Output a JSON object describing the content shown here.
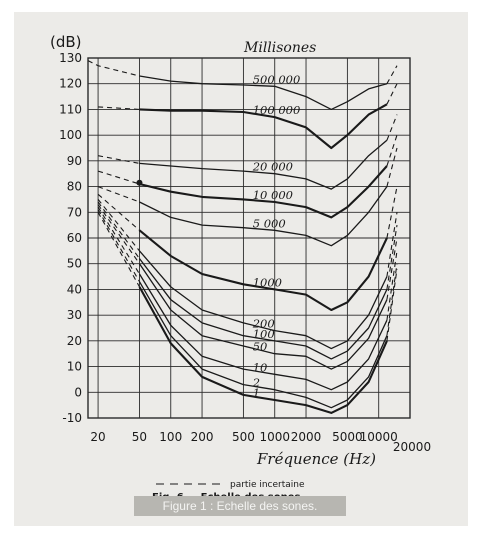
{
  "chart_data": {
    "type": "line",
    "title": "",
    "unit_label": "(dB)",
    "curve_group_label": "Millisones",
    "xlabel": "Fréquence (Hz)",
    "ylabel": "(dB)",
    "x_scale": "log",
    "xlim": [
      16,
      20000
    ],
    "ylim": [
      -10,
      130
    ],
    "x_ticks": [
      {
        "value": 20,
        "label": "20"
      },
      {
        "value": 50,
        "label": "50"
      },
      {
        "value": 100,
        "label": "100"
      },
      {
        "value": 200,
        "label": "200"
      },
      {
        "value": 500,
        "label": "500"
      },
      {
        "value": 1000,
        "label": "1000"
      },
      {
        "value": 2000,
        "label": "2000"
      },
      {
        "value": 5000,
        "label": "5000"
      },
      {
        "value": 10000,
        "label": "10000"
      },
      {
        "value": 20000,
        "label": "20000"
      }
    ],
    "y_ticks": [
      -10,
      0,
      10,
      20,
      30,
      40,
      50,
      60,
      70,
      80,
      90,
      100,
      110,
      120,
      130
    ],
    "grid": true,
    "series": [
      {
        "name": "500 000",
        "x": [
          16,
          20,
          50,
          100,
          200,
          500,
          1000,
          2000,
          3500,
          5000,
          8000,
          12000,
          15000
        ],
        "y": [
          129,
          127,
          123,
          121,
          120,
          119.5,
          119,
          115,
          110,
          113,
          118,
          120,
          127
        ]
      },
      {
        "name": "100 000",
        "x": [
          20,
          50,
          100,
          200,
          500,
          1000,
          2000,
          3500,
          5000,
          8000,
          12000,
          15000
        ],
        "y": [
          111,
          110,
          109.5,
          109.5,
          109,
          107,
          103,
          95,
          100,
          108,
          112,
          120
        ]
      },
      {
        "name": "20 000",
        "x": [
          20,
          50,
          100,
          200,
          500,
          1000,
          2000,
          3500,
          5000,
          8000,
          12000,
          15000
        ],
        "y": [
          92,
          89,
          88,
          87,
          86,
          85,
          83,
          79,
          83,
          92,
          98,
          108
        ]
      },
      {
        "name": "10 000",
        "x": [
          20,
          50,
          100,
          200,
          500,
          1000,
          2000,
          3500,
          5000,
          8000,
          12000,
          15000
        ],
        "y": [
          86,
          81,
          78,
          76,
          75,
          74,
          72,
          68,
          72,
          80,
          88,
          100
        ]
      },
      {
        "name": "5 000",
        "x": [
          20,
          50,
          100,
          200,
          500,
          1000,
          2000,
          3500,
          5000,
          8000,
          12000,
          15000
        ],
        "y": [
          80,
          74,
          68,
          65,
          64,
          63,
          61,
          57,
          61,
          70,
          80,
          95
        ]
      },
      {
        "name": "1000",
        "x": [
          20,
          50,
          100,
          200,
          500,
          1000,
          2000,
          3500,
          5000,
          8000,
          12000,
          15000
        ],
        "y": [
          77,
          63,
          53,
          46,
          42,
          40,
          38,
          32,
          35,
          45,
          60,
          80
        ]
      },
      {
        "name": "200",
        "x": [
          20,
          50,
          100,
          200,
          500,
          1000,
          2000,
          3500,
          5000,
          8000,
          12000,
          15000
        ],
        "y": [
          75,
          55,
          41,
          32,
          27,
          24,
          22,
          17,
          20,
          30,
          45,
          70
        ]
      },
      {
        "name": "100",
        "x": [
          20,
          50,
          100,
          200,
          500,
          1000,
          2000,
          3500,
          5000,
          8000,
          12000,
          15000
        ],
        "y": [
          74,
          52,
          36,
          27,
          22,
          20,
          18,
          13,
          16,
          25,
          40,
          65
        ]
      },
      {
        "name": "50",
        "x": [
          20,
          50,
          100,
          200,
          500,
          1000,
          2000,
          3500,
          5000,
          8000,
          12000,
          15000
        ],
        "y": [
          73,
          50,
          32,
          22,
          18,
          15,
          14,
          9,
          12,
          21,
          36,
          60
        ]
      },
      {
        "name": "10",
        "x": [
          20,
          50,
          100,
          200,
          500,
          1000,
          2000,
          3500,
          5000,
          8000,
          12000,
          15000
        ],
        "y": [
          72,
          46,
          26,
          14,
          9,
          7,
          5,
          1,
          4,
          13,
          28,
          55
        ]
      },
      {
        "name": "2",
        "x": [
          20,
          50,
          100,
          200,
          500,
          1000,
          2000,
          3500,
          5000,
          8000,
          12000,
          15000
        ],
        "y": [
          71,
          43,
          22,
          9,
          3,
          1,
          -2,
          -6,
          -3,
          6,
          22,
          50
        ]
      },
      {
        "name": "1",
        "x": [
          20,
          50,
          100,
          200,
          500,
          1000,
          2000,
          3500,
          5000,
          8000,
          12000,
          15000
        ],
        "y": [
          70,
          41,
          19,
          6,
          -1,
          -3,
          -5,
          -8,
          -5,
          4,
          20,
          48
        ]
      }
    ],
    "legend": {
      "dashed_label": "partie incertaine"
    },
    "figure_label": "Fig. 6 — Echelle des sones",
    "caption": "Figure 1 : Echelle des sones."
  },
  "colors": {
    "background": "#ecebe8",
    "ink": "#1a1a1a",
    "grid": "#2b2b2b",
    "caption_bg": "#b7b6b1",
    "caption_text": "#f4f4f2"
  }
}
